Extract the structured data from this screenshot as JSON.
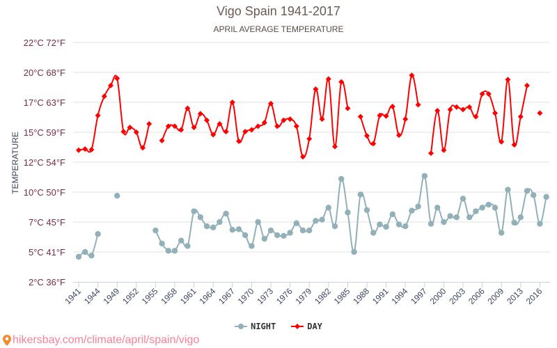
{
  "chart_data": {
    "type": "line",
    "title": "Vigo Spain 1941-2017",
    "subtitle": "APRIL AVERAGE TEMPERATURE",
    "ylabel": "TEMPERATURE",
    "xlabel": "",
    "ylim": [
      2.5,
      22.5
    ],
    "grid": true,
    "legend_position": "bottom-center",
    "y_ticks": [
      {
        "value": 2.5,
        "label": "2°C 36°F"
      },
      {
        "value": 5,
        "label": "5°C 41°F"
      },
      {
        "value": 7.5,
        "label": "7°C 45°F"
      },
      {
        "value": 10,
        "label": "10°C 50°F"
      },
      {
        "value": 12.5,
        "label": "12°C 54°F"
      },
      {
        "value": 15,
        "label": "15°C 59°F"
      },
      {
        "value": 17.5,
        "label": "17°C 63°F"
      },
      {
        "value": 20,
        "label": "20°C 68°F"
      },
      {
        "value": 22.5,
        "label": "22°C 72°F"
      }
    ],
    "x": [
      1941,
      1942,
      1943,
      1944,
      1947,
      1948,
      1949,
      1950,
      1951,
      1952,
      1953,
      1954,
      1955,
      1956,
      1957,
      1958,
      1959,
      1960,
      1961,
      1962,
      1963,
      1964,
      1965,
      1966,
      1967,
      1968,
      1969,
      1970,
      1971,
      1972,
      1973,
      1974,
      1975,
      1976,
      1977,
      1978,
      1979,
      1980,
      1981,
      1982,
      1983,
      1984,
      1985,
      1986,
      1987,
      1988,
      1989,
      1990,
      1991,
      1992,
      1993,
      1994,
      1995,
      1996,
      1997,
      1998,
      1999,
      2000,
      2001,
      2002,
      2003,
      2004,
      2005,
      2006,
      2007,
      2008,
      2009,
      2010,
      2011,
      2013,
      2014,
      2015,
      2016,
      2017
    ],
    "x_tick_labels": [
      "1941",
      "1944",
      "1949",
      "1952",
      "1955",
      "1958",
      "1961",
      "1964",
      "1967",
      "1970",
      "1973",
      "1976",
      "1979",
      "1982",
      "1985",
      "1988",
      "1991",
      "1994",
      "1997",
      "2000",
      "2003",
      "2006",
      "2009",
      "2013",
      "2016"
    ],
    "series": [
      {
        "name": "NIGHT",
        "color": "#92b0b8",
        "marker": "circle",
        "values": [
          4.6,
          5.0,
          4.7,
          6.5,
          null,
          null,
          9.7,
          null,
          null,
          null,
          null,
          null,
          6.8,
          5.7,
          5.1,
          5.1,
          5.95,
          5.5,
          8.4,
          7.9,
          7.15,
          7.05,
          7.5,
          8.2,
          6.85,
          6.9,
          6.4,
          5.5,
          7.5,
          6.1,
          6.8,
          6.4,
          6.35,
          6.6,
          7.4,
          6.8,
          6.8,
          7.6,
          7.7,
          8.7,
          7.15,
          11.1,
          8.3,
          5.0,
          9.8,
          8.5,
          6.6,
          7.3,
          7.1,
          8.15,
          7.3,
          7.15,
          8.45,
          8.8,
          11.35,
          7.35,
          8.7,
          7.5,
          8.0,
          7.9,
          9.45,
          7.9,
          8.4,
          8.7,
          8.95,
          8.7,
          6.6,
          10.2,
          7.45,
          7.9,
          10.1,
          9.75,
          7.35,
          9.6
        ]
      },
      {
        "name": "DAY",
        "color": "#ff0000",
        "marker": "diamond",
        "values": [
          13.5,
          13.6,
          13.55,
          16.4,
          18.0,
          18.9,
          19.5,
          15.05,
          15.4,
          15.0,
          13.7,
          15.7,
          null,
          14.3,
          15.5,
          15.5,
          15.2,
          17.0,
          15.4,
          16.55,
          16.0,
          14.8,
          15.7,
          15.05,
          17.5,
          14.25,
          15.05,
          15.2,
          15.5,
          15.8,
          17.4,
          15.5,
          16.0,
          16.1,
          15.5,
          12.95,
          14.45,
          18.6,
          16.1,
          19.45,
          13.8,
          19.2,
          17.0,
          null,
          16.3,
          14.7,
          14.05,
          16.4,
          16.35,
          17.15,
          14.75,
          16.1,
          19.75,
          17.3,
          null,
          13.25,
          16.8,
          13.5,
          16.9,
          17.1,
          16.9,
          17.1,
          16.3,
          18.2,
          18.2,
          16.6,
          14.2,
          19.4,
          13.95,
          16.3,
          18.9,
          null,
          16.6,
          null
        ]
      }
    ]
  },
  "legend": {
    "night": "NIGHT",
    "day": "DAY"
  },
  "footer": {
    "url_text": "hikersbay.com/climate/april/spain/vigo",
    "icon": "location-pin-icon",
    "color": "#ff7f98"
  }
}
